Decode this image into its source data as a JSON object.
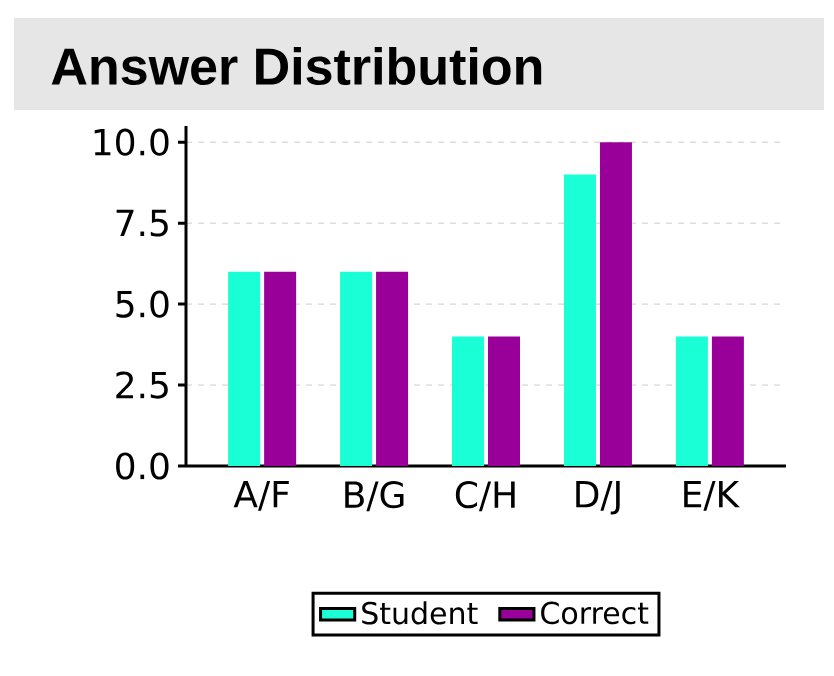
{
  "chart_data": {
    "type": "bar",
    "title": "Answer Distribution",
    "categories": [
      "A/F",
      "B/G",
      "C/H",
      "D/J",
      "E/K"
    ],
    "series": [
      {
        "name": "Student",
        "color": "#1affd5",
        "values": [
          6,
          6,
          4,
          9,
          4
        ]
      },
      {
        "name": "Correct",
        "color": "#990099",
        "values": [
          6,
          6,
          4,
          10,
          4
        ]
      }
    ],
    "ylim": [
      0,
      10.5
    ],
    "yticks": [
      {
        "value": 0,
        "label": "0.0"
      },
      {
        "value": 2.5,
        "label": "2.5"
      },
      {
        "value": 5,
        "label": "5.0"
      },
      {
        "value": 7.5,
        "label": "7.5"
      },
      {
        "value": 10,
        "label": "10.0"
      }
    ],
    "grid": "y",
    "legend": "bottom"
  }
}
